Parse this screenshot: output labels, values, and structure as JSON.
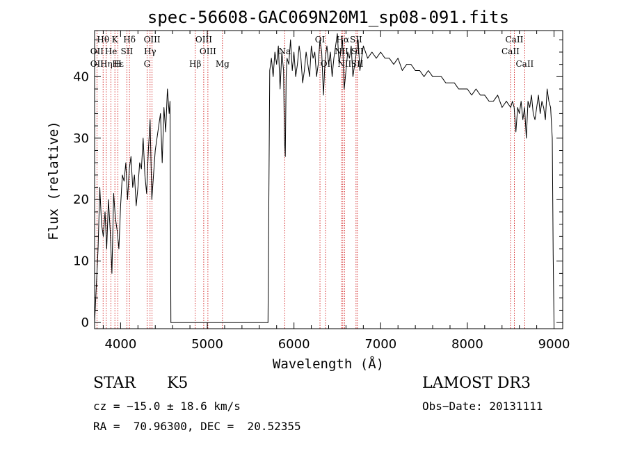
{
  "chart_data": {
    "type": "line",
    "title": "spec-56608-GAC069N20M1_sp08-091.fits",
    "xlabel": "Wavelength (Å)",
    "ylabel": "Flux (relative)",
    "xlim": [
      3700,
      9100
    ],
    "ylim": [
      -1,
      47.5
    ],
    "xticks": [
      4000,
      5000,
      6000,
      7000,
      8000,
      9000
    ],
    "yticks": [
      0,
      10,
      20,
      30,
      40
    ],
    "series": [
      {
        "name": "spectrum",
        "x": [
          3700,
          3720,
          3740,
          3760,
          3780,
          3800,
          3820,
          3840,
          3860,
          3880,
          3900,
          3920,
          3940,
          3960,
          3980,
          4000,
          4020,
          4040,
          4060,
          4080,
          4100,
          4120,
          4140,
          4160,
          4180,
          4200,
          4220,
          4240,
          4260,
          4280,
          4300,
          4320,
          4340,
          4360,
          4380,
          4400,
          4420,
          4440,
          4460,
          4480,
          4500,
          4520,
          4540,
          4560,
          4570,
          4580,
          5700,
          5720,
          5740,
          5760,
          5780,
          5800,
          5820,
          5840,
          5860,
          5880,
          5890,
          5900,
          5910,
          5920,
          5940,
          5960,
          5980,
          6000,
          6020,
          6040,
          6060,
          6080,
          6100,
          6120,
          6140,
          6160,
          6180,
          6200,
          6220,
          6240,
          6260,
          6280,
          6300,
          6320,
          6340,
          6360,
          6380,
          6400,
          6420,
          6440,
          6460,
          6480,
          6500,
          6520,
          6540,
          6560,
          6580,
          6600,
          6620,
          6640,
          6660,
          6680,
          6700,
          6720,
          6740,
          6760,
          6780,
          6800,
          6850,
          6900,
          6950,
          7000,
          7050,
          7100,
          7150,
          7200,
          7250,
          7300,
          7350,
          7400,
          7450,
          7500,
          7550,
          7600,
          7650,
          7700,
          7750,
          7800,
          7850,
          7900,
          7950,
          8000,
          8050,
          8100,
          8150,
          8200,
          8250,
          8300,
          8350,
          8400,
          8450,
          8500,
          8520,
          8540,
          8560,
          8580,
          8600,
          8620,
          8640,
          8660,
          8680,
          8700,
          8720,
          8740,
          8760,
          8780,
          8800,
          8820,
          8840,
          8860,
          8880,
          8900,
          8920,
          8940,
          8960,
          8980,
          8990,
          9000
        ],
        "values": [
          0,
          6,
          12,
          22,
          16,
          14,
          18,
          12,
          20,
          15,
          8,
          21,
          17,
          15,
          12,
          19,
          24,
          23,
          26,
          20,
          25,
          27,
          22,
          24,
          19,
          22,
          26,
          25,
          30,
          24,
          21,
          28,
          33,
          20,
          24,
          28,
          30,
          32,
          34,
          26,
          35,
          31,
          38,
          34,
          36,
          0,
          0,
          41,
          43,
          40,
          44,
          42,
          45,
          38,
          44,
          41,
          30,
          27,
          40,
          43,
          42,
          46,
          41,
          44,
          40,
          42,
          45,
          43,
          39,
          41,
          44,
          42,
          40,
          45,
          43,
          44,
          40,
          42,
          46,
          44,
          37,
          43,
          45,
          42,
          44,
          40,
          43,
          45,
          47,
          42,
          44,
          46,
          38,
          41,
          44,
          43,
          45,
          40,
          42,
          44,
          46,
          41,
          43,
          45,
          43,
          44,
          43,
          44,
          43,
          43,
          42,
          43,
          41,
          42,
          42,
          41,
          41,
          40,
          41,
          40,
          40,
          40,
          39,
          39,
          39,
          38,
          38,
          38,
          37,
          38,
          37,
          37,
          36,
          36,
          37,
          35,
          36,
          35,
          36,
          35,
          31,
          35,
          34,
          36,
          33,
          35,
          30,
          36,
          35,
          37,
          34,
          33,
          35,
          37,
          34,
          36,
          35,
          33,
          38,
          36,
          35,
          30,
          11,
          0
        ]
      }
    ],
    "annotations": [
      {
        "label": "Hθ",
        "x": 3798,
        "row": 1
      },
      {
        "label": "K",
        "x": 3934,
        "row": 1
      },
      {
        "label": "Hδ",
        "x": 4102,
        "row": 1
      },
      {
        "label": "OIII",
        "x": 4363,
        "row": 1
      },
      {
        "label": "OIII",
        "x": 4959,
        "row": 1
      },
      {
        "label": "OI",
        "x": 6300,
        "row": 1
      },
      {
        "label": "Hα",
        "x": 6563,
        "row": 1
      },
      {
        "label": "SII",
        "x": 6716,
        "row": 1
      },
      {
        "label": "CaII",
        "x": 8542,
        "row": 1
      },
      {
        "label": "OII",
        "x": 3727,
        "row": 2
      },
      {
        "label": "He",
        "x": 3889,
        "row": 2
      },
      {
        "label": "SII",
        "x": 4072,
        "row": 2
      },
      {
        "label": "Hγ",
        "x": 4340,
        "row": 2
      },
      {
        "label": "OIII",
        "x": 5007,
        "row": 2
      },
      {
        "label": "Na",
        "x": 5893,
        "row": 2
      },
      {
        "label": "NII",
        "x": 6548,
        "row": 2
      },
      {
        "label": "SII",
        "x": 6731,
        "row": 2
      },
      {
        "label": "CaII",
        "x": 8498,
        "row": 2
      },
      {
        "label": "OII",
        "x": 3727,
        "row": 3
      },
      {
        "label": "Hη",
        "x": 3835,
        "row": 3
      },
      {
        "label": "Hε",
        "x": 3970,
        "row": 3
      },
      {
        "label": "H",
        "x": 3968,
        "row": 3
      },
      {
        "label": "G",
        "x": 4305,
        "row": 3
      },
      {
        "label": "Hβ",
        "x": 4861,
        "row": 3
      },
      {
        "label": "Mg",
        "x": 5175,
        "row": 3
      },
      {
        "label": "OI",
        "x": 6364,
        "row": 3
      },
      {
        "label": "NII",
        "x": 6583,
        "row": 3
      },
      {
        "label": "SII",
        "x": 6731,
        "row": 3
      },
      {
        "label": "CaII",
        "x": 8662,
        "row": 3
      }
    ],
    "vlines": [
      3727,
      3798,
      3835,
      3889,
      3934,
      3968,
      4072,
      4102,
      4305,
      4340,
      4363,
      4861,
      4959,
      5007,
      5175,
      5893,
      6300,
      6364,
      6548,
      6563,
      6583,
      6716,
      6731,
      8498,
      8542,
      8662
    ]
  },
  "info": {
    "class_label": "STAR",
    "subclass": "K5",
    "survey": "LAMOST DR3",
    "cz": "cz = −15.0 ± 18.6 km/s",
    "obs_date": "Obs−Date: 20131111",
    "radec": "RA =  70.96300, DEC =  20.52355"
  },
  "colors": {
    "line": "#000000",
    "marker": "#cc0000",
    "axis": "#000000"
  }
}
